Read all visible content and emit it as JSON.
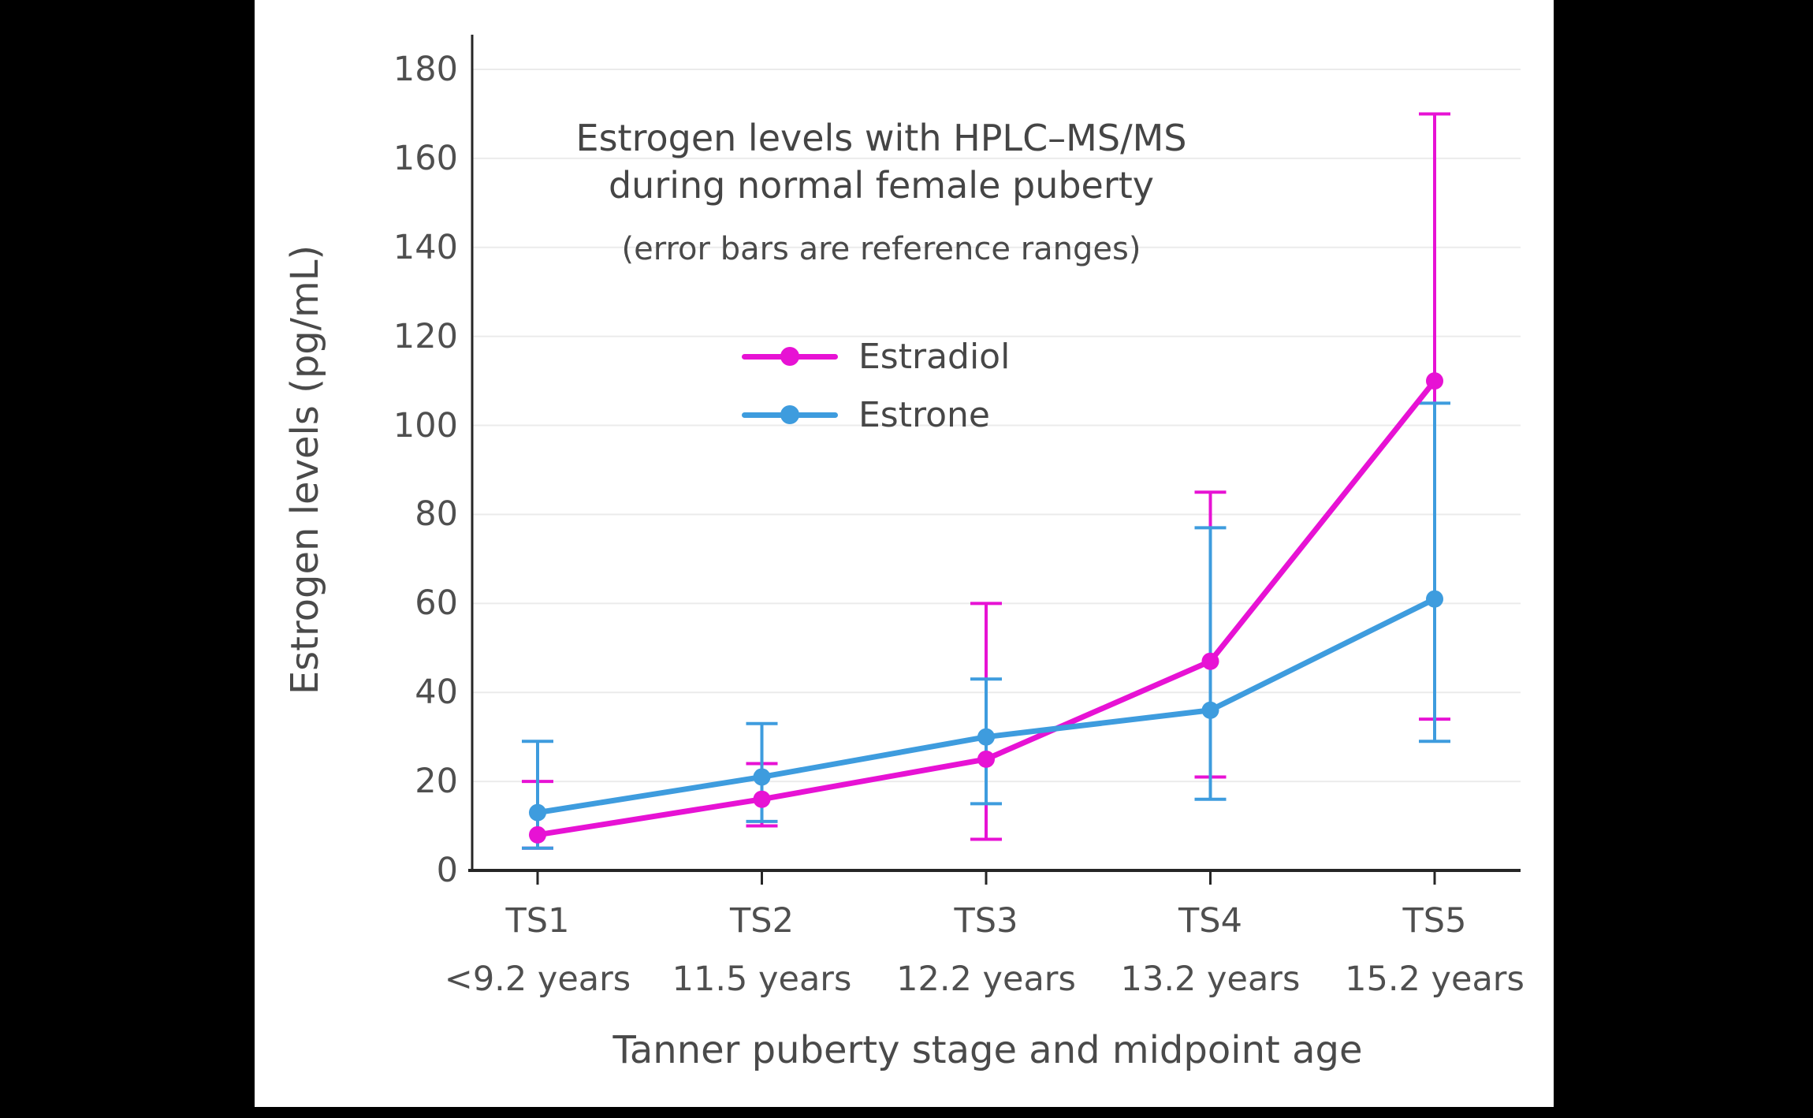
{
  "chart_data": {
    "type": "line",
    "title_lines": [
      "Estrogen levels with HPLC–MS/MS",
      "during normal female puberty"
    ],
    "subtitle": "(error bars are reference ranges)",
    "xlabel": "Tanner puberty stage and midpoint age",
    "ylabel": "Estrogen levels (pg/mL)",
    "categories": [
      {
        "stage": "TS1",
        "age": "<9.2 years"
      },
      {
        "stage": "TS2",
        "age": "11.5 years"
      },
      {
        "stage": "TS3",
        "age": "12.2 years"
      },
      {
        "stage": "TS4",
        "age": "13.2 years"
      },
      {
        "stage": "TS5",
        "age": "15.2 years"
      }
    ],
    "yticks": [
      0,
      20,
      40,
      60,
      80,
      100,
      120,
      140,
      160,
      180
    ],
    "ylim": [
      0,
      180
    ],
    "grid": true,
    "legend_position": "upper-center-inside",
    "series": [
      {
        "name": "Estradiol",
        "color": "#e712d4",
        "values": [
          8,
          16,
          25,
          47,
          110
        ],
        "error_low": [
          5,
          10,
          7,
          21,
          34
        ],
        "error_high": [
          20,
          24,
          60,
          85,
          170
        ]
      },
      {
        "name": "Estrone",
        "color": "#3e9cde",
        "values": [
          13,
          21,
          30,
          36,
          61
        ],
        "error_low": [
          5,
          11,
          15,
          16,
          29
        ],
        "error_high": [
          29,
          33,
          43,
          77,
          105
        ]
      }
    ],
    "colors": {
      "grid": "#ebebeb",
      "axis": "#262626",
      "text": "#4a4a4a",
      "panel_bg": "#ffffff",
      "page_bg": "#000000"
    }
  }
}
